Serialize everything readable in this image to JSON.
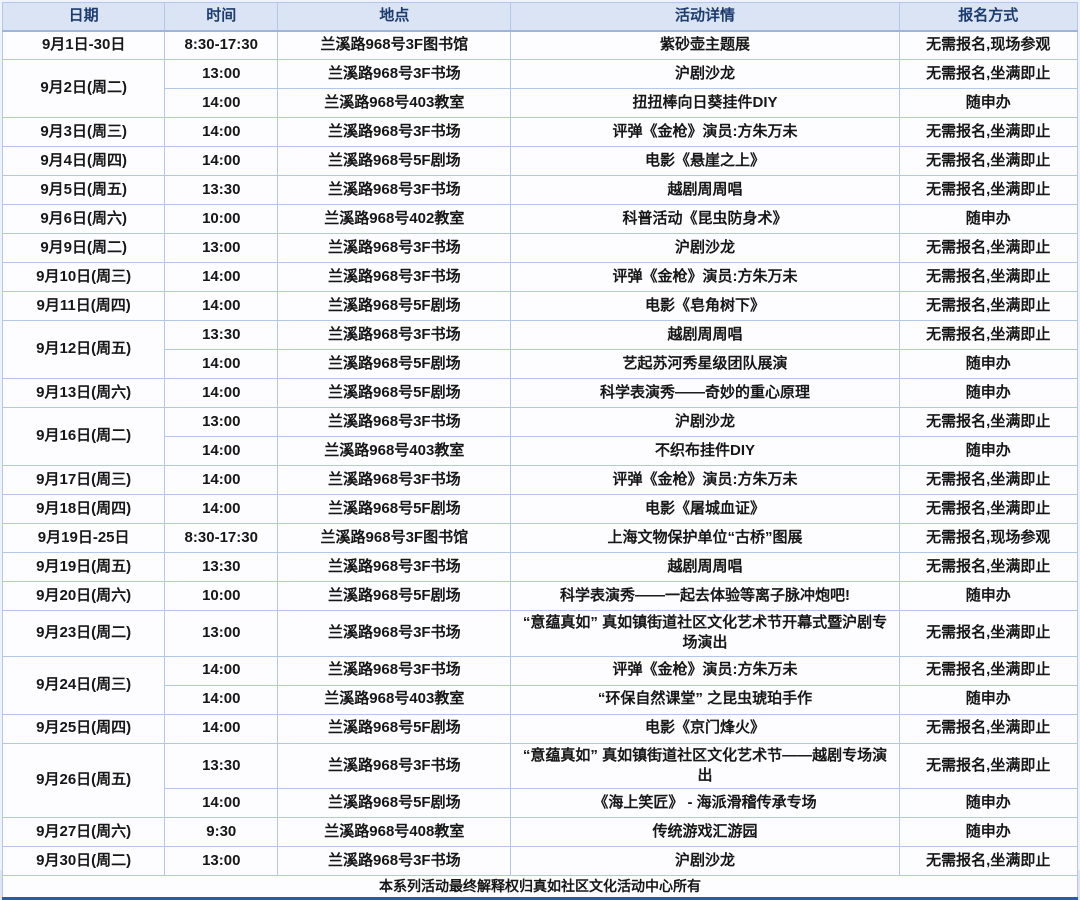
{
  "table": {
    "columns": [
      {
        "key": "date",
        "label": "日期"
      },
      {
        "key": "time",
        "label": "时间"
      },
      {
        "key": "location",
        "label": "地点"
      },
      {
        "key": "activity",
        "label": "活动详情"
      },
      {
        "key": "registration",
        "label": "报名方式"
      }
    ],
    "rows": [
      {
        "date": "9月1日-30日",
        "date_rowspan": 1,
        "time": "8:30-17:30",
        "location": "兰溪路968号3F图书馆",
        "activity": "紫砂壶主题展",
        "registration": "无需报名,现场参观"
      },
      {
        "date": "9月2日(周二)",
        "date_rowspan": 2,
        "time": "13:00",
        "location": "兰溪路968号3F书场",
        "activity": "沪剧沙龙",
        "registration": "无需报名,坐满即止"
      },
      {
        "date": null,
        "time": "14:00",
        "location": "兰溪路968号403教室",
        "activity": "扭扭棒向日葵挂件DIY",
        "registration": "随申办"
      },
      {
        "date": "9月3日(周三)",
        "date_rowspan": 1,
        "time": "14:00",
        "location": "兰溪路968号3F书场",
        "activity": "评弹《金枪》演员:方朱万未",
        "registration": "无需报名,坐满即止"
      },
      {
        "date": "9月4日(周四)",
        "date_rowspan": 1,
        "time": "14:00",
        "location": "兰溪路968号5F剧场",
        "activity": "电影《悬崖之上》",
        "registration": "无需报名,坐满即止"
      },
      {
        "date": "9月5日(周五)",
        "date_rowspan": 1,
        "time": "13:30",
        "location": "兰溪路968号3F书场",
        "activity": "越剧周周唱",
        "registration": "无需报名,坐满即止"
      },
      {
        "date": "9月6日(周六)",
        "date_rowspan": 1,
        "time": "10:00",
        "location": "兰溪路968号402教室",
        "activity": "科普活动《昆虫防身术》",
        "registration": "随申办"
      },
      {
        "date": "9月9日(周二)",
        "date_rowspan": 1,
        "time": "13:00",
        "location": "兰溪路968号3F书场",
        "activity": "沪剧沙龙",
        "registration": "无需报名,坐满即止"
      },
      {
        "date": "9月10日(周三)",
        "date_rowspan": 1,
        "time": "14:00",
        "location": "兰溪路968号3F书场",
        "activity": "评弹《金枪》演员:方朱万未",
        "registration": "无需报名,坐满即止"
      },
      {
        "date": "9月11日(周四)",
        "date_rowspan": 1,
        "time": "14:00",
        "location": "兰溪路968号5F剧场",
        "activity": "电影《皂角树下》",
        "registration": "无需报名,坐满即止"
      },
      {
        "date": "9月12日(周五)",
        "date_rowspan": 2,
        "time": "13:30",
        "location": "兰溪路968号3F书场",
        "activity": "越剧周周唱",
        "registration": "无需报名,坐满即止"
      },
      {
        "date": null,
        "time": "14:00",
        "location": "兰溪路968号5F剧场",
        "activity": "艺起苏河秀星级团队展演",
        "registration": "随申办"
      },
      {
        "date": "9月13日(周六)",
        "date_rowspan": 1,
        "time": "14:00",
        "location": "兰溪路968号5F剧场",
        "activity": "科学表演秀——奇妙的重心原理",
        "registration": "随申办"
      },
      {
        "date": "9月16日(周二)",
        "date_rowspan": 2,
        "time": "13:00",
        "location": "兰溪路968号3F书场",
        "activity": "沪剧沙龙",
        "registration": "无需报名,坐满即止"
      },
      {
        "date": null,
        "time": "14:00",
        "location": "兰溪路968号403教室",
        "activity": "不织布挂件DIY",
        "registration": "随申办"
      },
      {
        "date": "9月17日(周三)",
        "date_rowspan": 1,
        "time": "14:00",
        "location": "兰溪路968号3F书场",
        "activity": "评弹《金枪》演员:方朱万未",
        "registration": "无需报名,坐满即止"
      },
      {
        "date": "9月18日(周四)",
        "date_rowspan": 1,
        "time": "14:00",
        "location": "兰溪路968号5F剧场",
        "activity": "电影《屠城血证》",
        "registration": "无需报名,坐满即止"
      },
      {
        "date": "9月19日-25日",
        "date_rowspan": 1,
        "time": "8:30-17:30",
        "location": "兰溪路968号3F图书馆",
        "activity": "上海文物保护单位“古桥”图展",
        "registration": "无需报名,现场参观"
      },
      {
        "date": "9月19日(周五)",
        "date_rowspan": 1,
        "time": "13:30",
        "location": "兰溪路968号3F书场",
        "activity": "越剧周周唱",
        "registration": "无需报名,坐满即止"
      },
      {
        "date": "9月20日(周六)",
        "date_rowspan": 1,
        "time": "10:00",
        "location": "兰溪路968号5F剧场",
        "activity": "科学表演秀——一起去体验等离子脉冲炮吧!",
        "registration": "随申办"
      },
      {
        "date": "9月23日(周二)",
        "date_rowspan": 1,
        "time": "13:00",
        "location": "兰溪路968号3F书场",
        "activity": "“意蕴真如” 真如镇街道社区文化艺术节开幕式暨沪剧专场演出",
        "registration": "无需报名,坐满即止"
      },
      {
        "date": "9月24日(周三)",
        "date_rowspan": 2,
        "time": "14:00",
        "location": "兰溪路968号3F书场",
        "activity": "评弹《金枪》演员:方朱万未",
        "registration": "无需报名,坐满即止"
      },
      {
        "date": null,
        "time": "14:00",
        "location": "兰溪路968号403教室",
        "activity": "“环保自然课堂” 之昆虫琥珀手作",
        "registration": "随申办"
      },
      {
        "date": "9月25日(周四)",
        "date_rowspan": 1,
        "time": "14:00",
        "location": "兰溪路968号5F剧场",
        "activity": "电影《京门烽火》",
        "registration": "无需报名,坐满即止"
      },
      {
        "date": "9月26日(周五)",
        "date_rowspan": 2,
        "time": "13:30",
        "location": "兰溪路968号3F书场",
        "activity": "“意蕴真如” 真如镇街道社区文化艺术节——越剧专场演出",
        "registration": "无需报名,坐满即止"
      },
      {
        "date": null,
        "time": "14:00",
        "location": "兰溪路968号5F剧场",
        "activity": "《海上笑匠》 - 海派滑稽传承专场",
        "registration": "随申办"
      },
      {
        "date": "9月27日(周六)",
        "date_rowspan": 1,
        "time": "9:30",
        "location": "兰溪路968号408教室",
        "activity": "传统游戏汇游园",
        "registration": "随申办"
      },
      {
        "date": "9月30日(周二)",
        "date_rowspan": 1,
        "time": "13:00",
        "location": "兰溪路968号3F书场",
        "activity": "沪剧沙龙",
        "registration": "无需报名,坐满即止"
      }
    ]
  },
  "footer": {
    "note": "本系列活动最终解释权归真如社区文化活动中心所有"
  },
  "colors": {
    "header_bg": "#dbe4f4",
    "header_text": "#1d3c6e",
    "grid_line": "#b5c7e8",
    "outer_border": "#7094cf",
    "bottom_border": "#2d59a9",
    "body_text": "#161616"
  }
}
